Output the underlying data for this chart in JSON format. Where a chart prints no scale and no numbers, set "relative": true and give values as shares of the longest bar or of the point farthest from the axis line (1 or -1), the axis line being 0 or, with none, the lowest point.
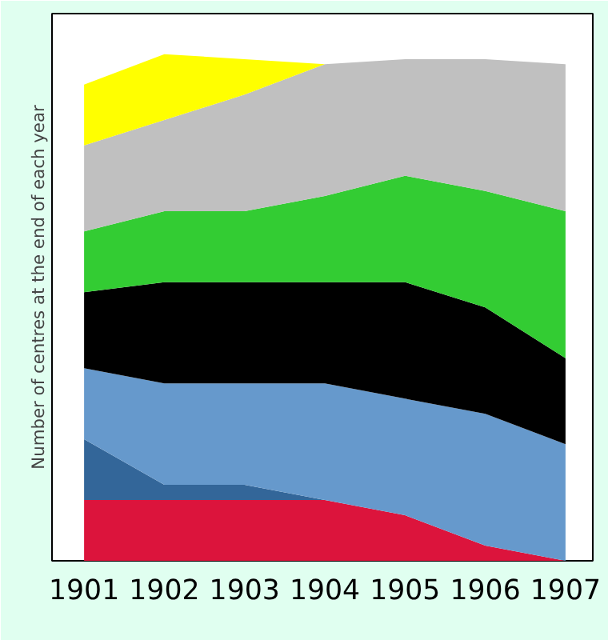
{
  "chart_data": {
    "type": "area",
    "stacked": true,
    "relative": true,
    "ylabel": "Number of centres at the end of each year",
    "categories": [
      "1901",
      "1902",
      "1903",
      "1904",
      "1905",
      "1906",
      "1907"
    ],
    "grid": false,
    "series": [
      {
        "color": "#dc143c",
        "values": [
          0.12,
          0.12,
          0.12,
          0.12,
          0.09,
          0.03,
          0
        ]
      },
      {
        "color": "#336699",
        "values": [
          0.12,
          0.03,
          0.03,
          0,
          0,
          0,
          0
        ]
      },
      {
        "color": "#6699cc",
        "values": [
          0.14,
          0.2,
          0.2,
          0.23,
          0.23,
          0.26,
          0.23
        ]
      },
      {
        "color": "#000000",
        "values": [
          0.15,
          0.2,
          0.2,
          0.2,
          0.23,
          0.21,
          0.17
        ]
      },
      {
        "color": "#33cc33",
        "values": [
          0.12,
          0.14,
          0.14,
          0.17,
          0.21,
          0.23,
          0.29
        ]
      },
      {
        "color": "#c0c0c0",
        "values": [
          0.17,
          0.18,
          0.23,
          0.26,
          0.23,
          0.26,
          0.29
        ]
      },
      {
        "color": "#ffff00",
        "values": [
          0.12,
          0.13,
          0.07,
          0,
          0,
          0,
          0
        ]
      }
    ]
  }
}
